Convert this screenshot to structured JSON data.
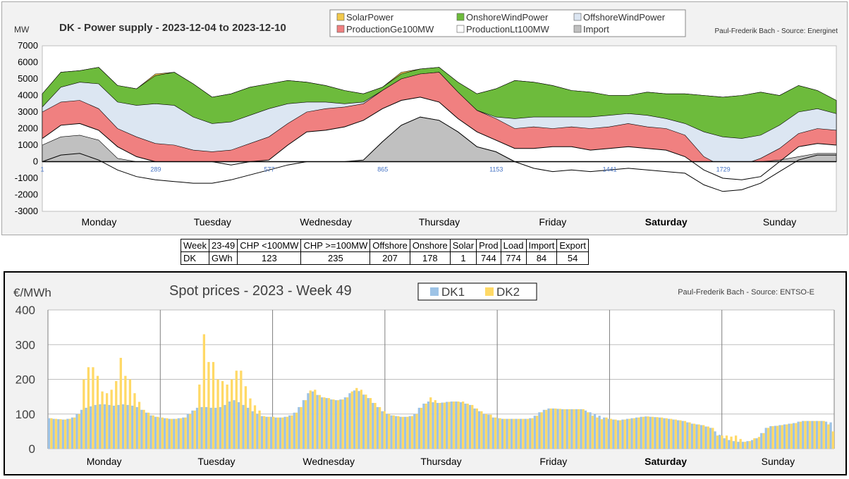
{
  "chart_data": [
    {
      "type": "area",
      "title": "DK - Power supply - 2023-12-04 to 2023-12-10",
      "ylabel": "MW",
      "source": "Paul-Frederik Bach - Source: Energinet",
      "ylim": [
        -3000,
        7000
      ],
      "yticks": [
        -3000,
        -2000,
        -1000,
        0,
        1000,
        2000,
        3000,
        4000,
        5000,
        6000,
        7000
      ],
      "xlim": [
        1,
        2016
      ],
      "xticks": [
        1,
        289,
        577,
        865,
        1153,
        1441,
        1729
      ],
      "day_labels": [
        "Monday",
        "Tuesday",
        "Wednesday",
        "Thursday",
        "Friday",
        "Saturday",
        "Sunday"
      ],
      "grid": false,
      "legend": "top-center",
      "legend_entries": [
        {
          "name": "SolarPower",
          "color": "#f2c94c"
        },
        {
          "name": "OnshoreWindPower",
          "color": "#6dbb3c"
        },
        {
          "name": "OffshoreWindPower",
          "color": "#dce6f2"
        },
        {
          "name": "ProductionGe100MW",
          "color": "#f08080"
        },
        {
          "name": "ProductionLt100MW",
          "color": "#ffffff"
        },
        {
          "name": "Import",
          "color": "#c0c0c0"
        }
      ],
      "x": [
        1,
        48,
        96,
        144,
        192,
        240,
        288,
        336,
        384,
        432,
        480,
        528,
        576,
        624,
        672,
        720,
        768,
        816,
        864,
        912,
        960,
        1008,
        1056,
        1104,
        1152,
        1200,
        1248,
        1296,
        1344,
        1392,
        1440,
        1488,
        1536,
        1584,
        1632,
        1680,
        1728,
        1776,
        1824,
        1872,
        1920,
        1968,
        2016
      ],
      "series": [
        {
          "name": "Import",
          "color": "#c0c0c0",
          "values": [
            1000,
            1500,
            1600,
            1300,
            200,
            0,
            0,
            0,
            0,
            0,
            0,
            0,
            0,
            0,
            0,
            0,
            0,
            100,
            1200,
            2200,
            2700,
            2500,
            1800,
            900,
            600,
            0,
            0,
            0,
            0,
            0,
            0,
            0,
            0,
            0,
            0,
            0,
            0,
            0,
            0,
            100,
            300,
            500,
            500
          ]
        },
        {
          "name": "ProductionLt100MW",
          "color": "#ffffff",
          "values": [
            1400,
            2200,
            2300,
            1900,
            900,
            300,
            0,
            0,
            0,
            0,
            -200,
            0,
            100,
            1000,
            1800,
            1900,
            2100,
            2500,
            3200,
            3700,
            3900,
            3600,
            2600,
            1800,
            1300,
            800,
            800,
            900,
            900,
            700,
            800,
            900,
            800,
            700,
            300,
            -500,
            -1000,
            -1100,
            -900,
            0,
            900,
            1100,
            1000
          ]
        },
        {
          "name": "ProductionGe100MW",
          "color": "#f08080",
          "values": [
            3000,
            3600,
            3700,
            3200,
            2000,
            1500,
            1100,
            1000,
            700,
            600,
            700,
            1100,
            1500,
            2300,
            3000,
            3200,
            3300,
            3500,
            4300,
            5000,
            5300,
            5400,
            4200,
            3100,
            2600,
            2000,
            2100,
            2000,
            2100,
            2000,
            2100,
            2300,
            2100,
            2000,
            1600,
            300,
            -300,
            -200,
            200,
            800,
            1700,
            2000,
            1900
          ]
        },
        {
          "name": "OffshoreWindPower",
          "color": "#dce6f2",
          "values": [
            3300,
            4500,
            4800,
            4700,
            3600,
            3400,
            3500,
            3400,
            2700,
            2300,
            2400,
            2800,
            3200,
            3500,
            3600,
            3600,
            3500,
            3600,
            4300,
            5000,
            5300,
            5400,
            4200,
            3100,
            2700,
            2600,
            2700,
            2700,
            2700,
            2700,
            2800,
            2900,
            2800,
            2600,
            2300,
            1800,
            1500,
            1400,
            1600,
            2200,
            3000,
            3200,
            2900
          ]
        },
        {
          "name": "OnshoreWindPower",
          "color": "#6dbb3c",
          "values": [
            4100,
            5400,
            5500,
            5700,
            4600,
            4400,
            5200,
            5400,
            4700,
            3900,
            4100,
            4500,
            4700,
            4900,
            4800,
            4600,
            4300,
            4100,
            4500,
            5300,
            5600,
            5700,
            4800,
            4100,
            4400,
            4900,
            4800,
            4600,
            4300,
            4200,
            4000,
            4000,
            4200,
            4100,
            4100,
            4000,
            3900,
            4000,
            4200,
            4000,
            4600,
            4300,
            3700
          ]
        },
        {
          "name": "SolarPower",
          "color": "#f2c94c",
          "values": [
            4100,
            5400,
            5500,
            5700,
            4600,
            4400,
            5300,
            5400,
            4700,
            3900,
            4100,
            4500,
            4700,
            4900,
            4800,
            4600,
            4300,
            4100,
            4500,
            5400,
            5600,
            5700,
            4800,
            4100,
            4400,
            4900,
            4800,
            4600,
            4300,
            4200,
            4000,
            4000,
            4200,
            4100,
            4100,
            4000,
            3900,
            4000,
            4200,
            4000,
            4600,
            4300,
            3700
          ]
        },
        {
          "name": "Net Import line",
          "color": "#000000",
          "values": [
            0,
            400,
            500,
            100,
            -500,
            -900,
            -1100,
            -1200,
            -1300,
            -1300,
            -1100,
            -800,
            -500,
            -200,
            0,
            0,
            0,
            100,
            1200,
            2200,
            2700,
            2500,
            1800,
            900,
            600,
            0,
            -400,
            -600,
            -500,
            -600,
            -500,
            -400,
            -500,
            -600,
            -700,
            -1400,
            -1800,
            -1700,
            -1300,
            -600,
            100,
            400,
            400
          ]
        }
      ]
    },
    {
      "type": "bar",
      "title": "Spot prices - 2023 - Week 49",
      "ylabel": "€/MWh",
      "source": "Paul-Frederik Bach - Source: ENTSO-E",
      "ylim": [
        0,
        400
      ],
      "yticks": [
        0,
        100,
        200,
        300,
        400
      ],
      "day_labels": [
        "Monday",
        "Tuesday",
        "Wednesday",
        "Thursday",
        "Friday",
        "Saturday",
        "Sunday"
      ],
      "grid": true,
      "legend": "top-center",
      "legend_entries": [
        {
          "name": "DK1",
          "color": "#9dc3e6"
        },
        {
          "name": "DK2",
          "color": "#ffd966"
        }
      ],
      "hours_per_day": 24,
      "series": [
        {
          "name": "DK1",
          "color": "#9dc3e6",
          "values": [
            88,
            86,
            85,
            84,
            86,
            90,
            100,
            112,
            118,
            122,
            126,
            128,
            128,
            126,
            124,
            126,
            128,
            126,
            124,
            120,
            112,
            104,
            96,
            92,
            90,
            88,
            86,
            86,
            88,
            90,
            100,
            110,
            118,
            120,
            120,
            118,
            118,
            120,
            126,
            136,
            140,
            134,
            126,
            118,
            108,
            100,
            94,
            92,
            92,
            90,
            90,
            92,
            96,
            104,
            120,
            140,
            160,
            165,
            155,
            148,
            146,
            142,
            140,
            142,
            148,
            160,
            168,
            166,
            156,
            146,
            132,
            120,
            108,
            100,
            96,
            94,
            92,
            92,
            94,
            100,
            118,
            130,
            136,
            134,
            132,
            133,
            135,
            136,
            136,
            134,
            130,
            126,
            116,
            108,
            100,
            98,
            90,
            88,
            86,
            86,
            86,
            86,
            86,
            86,
            88,
            95,
            105,
            112,
            116,
            116,
            115,
            114,
            114,
            114,
            114,
            114,
            110,
            105,
            100,
            95,
            90,
            86,
            84,
            82,
            84,
            86,
            88,
            90,
            92,
            93,
            92,
            91,
            90,
            88,
            86,
            84,
            82,
            80,
            76,
            72,
            70,
            68,
            64,
            60,
            50,
            40,
            30,
            25,
            22,
            20,
            20,
            22,
            25,
            30,
            45,
            60,
            65,
            66,
            68,
            70,
            72,
            74,
            78,
            80,
            80,
            80,
            80,
            80,
            78,
            76
          ]
        },
        {
          "name": "DK2",
          "color": "#ffd966",
          "values": [
            88,
            86,
            85,
            84,
            86,
            90,
            100,
            200,
            235,
            235,
            210,
            165,
            160,
            170,
            195,
            262,
            210,
            200,
            160,
            135,
            112,
            104,
            96,
            92,
            90,
            88,
            86,
            86,
            88,
            90,
            100,
            110,
            185,
            330,
            250,
            250,
            200,
            195,
            185,
            200,
            225,
            225,
            180,
            145,
            125,
            110,
            94,
            92,
            92,
            90,
            90,
            92,
            96,
            104,
            120,
            140,
            168,
            170,
            155,
            148,
            146,
            142,
            140,
            142,
            148,
            165,
            175,
            170,
            156,
            146,
            132,
            120,
            108,
            100,
            96,
            94,
            92,
            92,
            94,
            100,
            118,
            130,
            148,
            140,
            132,
            133,
            135,
            136,
            136,
            136,
            130,
            126,
            116,
            108,
            100,
            98,
            90,
            88,
            86,
            86,
            86,
            86,
            86,
            86,
            88,
            95,
            105,
            112,
            116,
            116,
            115,
            114,
            114,
            114,
            114,
            114,
            105,
            95,
            90,
            85,
            90,
            86,
            84,
            82,
            84,
            86,
            88,
            90,
            92,
            93,
            92,
            91,
            90,
            88,
            86,
            84,
            82,
            80,
            76,
            72,
            70,
            68,
            64,
            60,
            38,
            38,
            38,
            35,
            38,
            28,
            20,
            22,
            30,
            34,
            45,
            60,
            65,
            66,
            68,
            70,
            72,
            74,
            78,
            80,
            80,
            80,
            80,
            80,
            70,
            50
          ]
        }
      ]
    }
  ],
  "summary": {
    "row1": [
      "Week",
      "23-49",
      "CHP <100MW",
      "CHP >=100MW",
      "Offshore",
      "Onshore",
      "Solar",
      "Prod",
      "Load",
      "Import",
      "Export"
    ],
    "row2": [
      "DK",
      "GWh",
      "123",
      "235",
      "207",
      "178",
      "1",
      "744",
      "774",
      "84",
      "54"
    ]
  }
}
